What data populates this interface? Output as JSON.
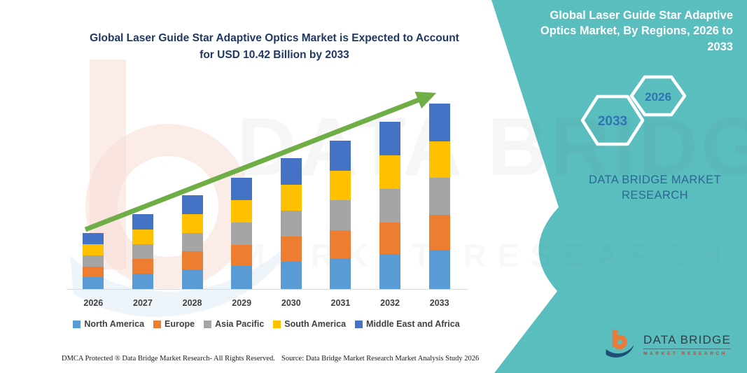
{
  "colors": {
    "teal": "#5ABEBF",
    "navy_title": "#1F3864",
    "hexagon_year": "#2E74B5",
    "brand_blue": "#2C6794",
    "arrow_green": "#6FAE46",
    "axis_line": "#D9D9D9",
    "label_gray": "#404040",
    "footer_black": "#1A1A1A",
    "logo_orange": "#E87A3C",
    "logo_navy": "#1F4E79"
  },
  "header": {
    "chart_title": "Global Laser Guide Star Adaptive Optics Market is Expected to Account for USD 10.42 Billion by 2033"
  },
  "right_panel": {
    "title": "Global Laser Guide Star Adaptive Optics Market, By Regions, 2026 to 2033",
    "hexagons": [
      {
        "label": "2033"
      },
      {
        "label": "2026"
      }
    ],
    "brand_text": "DATA BRIDGE MARKET RESEARCH",
    "logo": {
      "name": "DATA BRIDGE",
      "subtitle": "MARKET RESEARCH"
    }
  },
  "chart_data": {
    "type": "bar",
    "stacked": true,
    "unit": "USD Billion",
    "title": "Global Laser Guide Star Adaptive Optics Market, By Regions, 2026 to 2033",
    "categories": [
      "2026",
      "2027",
      "2028",
      "2029",
      "2030",
      "2031",
      "2032",
      "2033"
    ],
    "series": [
      {
        "name": "North America",
        "color": "#5B9BD5",
        "values": [
          0.66,
          0.88,
          1.11,
          1.31,
          1.54,
          1.75,
          1.97,
          2.19
        ]
      },
      {
        "name": "Europe",
        "color": "#ED7D31",
        "values": [
          0.6,
          0.8,
          1.0,
          1.19,
          1.4,
          1.58,
          1.79,
          1.98
        ]
      },
      {
        "name": "Asia Pacific",
        "color": "#A5A5A5",
        "values": [
          0.63,
          0.84,
          1.05,
          1.25,
          1.47,
          1.67,
          1.88,
          2.08
        ]
      },
      {
        "name": "South America",
        "color": "#FFC000",
        "values": [
          0.63,
          0.84,
          1.05,
          1.25,
          1.47,
          1.67,
          1.88,
          2.08
        ]
      },
      {
        "name": "Middle East and Africa",
        "color": "#4472C4",
        "values": [
          0.63,
          0.85,
          1.06,
          1.25,
          1.47,
          1.67,
          1.88,
          2.09
        ]
      }
    ],
    "totals": [
      3.15,
      4.21,
      5.27,
      6.25,
      7.35,
      8.34,
      9.4,
      10.42
    ],
    "highlight_value": "USD 10.42 Billion",
    "highlight_year": "2033",
    "ylim": [
      0,
      11
    ],
    "y_axis_visible": false,
    "gridlines": false,
    "legend_position": "bottom",
    "trend_arrow": true
  },
  "footer": {
    "dmca": "DMCA Protected ® Data Bridge Market Research-  All Rights Reserved.",
    "source": "Source: Data Bridge Market Research  Market Analysis Study 2026"
  },
  "watermark": {
    "line1": "DATA BRIDGE",
    "line2": "MARKET RESEARCH"
  }
}
